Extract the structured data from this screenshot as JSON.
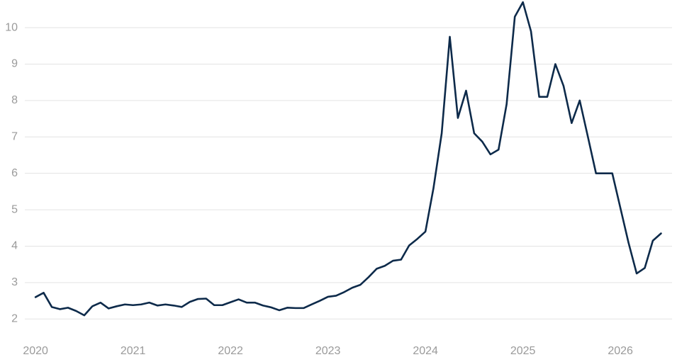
{
  "chart_data": {
    "type": "line",
    "x": [
      2020,
      2020.083,
      2020.167,
      2020.25,
      2020.333,
      2020.417,
      2020.5,
      2020.583,
      2020.667,
      2020.75,
      2020.833,
      2020.917,
      2021,
      2021.083,
      2021.167,
      2021.25,
      2021.333,
      2021.417,
      2021.5,
      2021.583,
      2021.667,
      2021.75,
      2021.833,
      2021.917,
      2022,
      2022.083,
      2022.167,
      2022.25,
      2022.333,
      2022.417,
      2022.5,
      2022.583,
      2022.667,
      2022.75,
      2022.833,
      2022.917,
      2023,
      2023.083,
      2023.167,
      2023.25,
      2023.333,
      2023.417,
      2023.5,
      2023.583,
      2023.667,
      2023.75,
      2023.833,
      2023.917,
      2024,
      2024.083,
      2024.167,
      2024.25,
      2024.333,
      2024.417,
      2024.5,
      2024.583,
      2024.667,
      2024.75,
      2024.833,
      2024.917,
      2025,
      2025.083,
      2025.167,
      2025.25,
      2025.333,
      2025.417,
      2025.5,
      2025.583,
      2025.667,
      2025.75,
      2025.833,
      2025.917,
      2026,
      2026.083,
      2026.167,
      2026.25,
      2026.333,
      2026.417
    ],
    "values": [
      2.6,
      2.72,
      2.33,
      2.27,
      2.31,
      2.22,
      2.1,
      2.35,
      2.45,
      2.29,
      2.35,
      2.4,
      2.38,
      2.4,
      2.45,
      2.37,
      2.4,
      2.37,
      2.33,
      2.47,
      2.55,
      2.56,
      2.38,
      2.38,
      2.46,
      2.54,
      2.45,
      2.45,
      2.37,
      2.32,
      2.24,
      2.31,
      2.3,
      2.3,
      2.4,
      2.5,
      2.61,
      2.64,
      2.74,
      2.86,
      2.94,
      3.15,
      3.38,
      3.46,
      3.6,
      3.63,
      4.02,
      4.2,
      4.4,
      5.6,
      7.1,
      9.75,
      7.52,
      8.27,
      7.1,
      6.87,
      6.52,
      6.65,
      7.9,
      10.3,
      10.7,
      9.9,
      8.1,
      8.1,
      9.0,
      8.4,
      7.38,
      8.0,
      7.0,
      6.0,
      6.0,
      6.0,
      5.05,
      4.1,
      3.25,
      3.4,
      4.15,
      4.35
    ],
    "color": "#0d2a4a",
    "xlim": [
      2019.89,
      2026.53
    ],
    "xticks": [
      2020,
      2021,
      2022,
      2023,
      2024,
      2025,
      2026
    ],
    "ylim": [
      1.5,
      10.75
    ],
    "yticks": [
      2,
      3,
      4,
      5,
      6,
      7,
      8,
      9,
      10
    ],
    "grid": true
  }
}
